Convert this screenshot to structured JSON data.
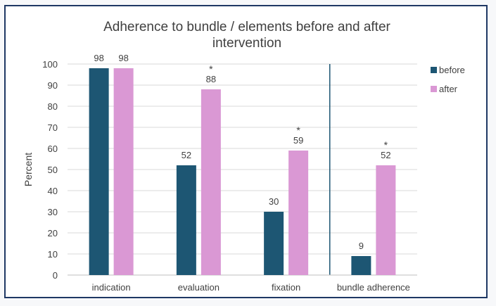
{
  "chart_data": {
    "type": "bar",
    "title_lines": [
      "Adherence to bundle / elements before and after",
      "intervention"
    ],
    "ylabel": "Percent",
    "xlabel": "",
    "categories": [
      "indication",
      "evaluation",
      "fixation",
      "bundle adherence"
    ],
    "series": [
      {
        "name": "before",
        "values": [
          98,
          52,
          30,
          9
        ],
        "color": "#1d5673"
      },
      {
        "name": "after",
        "values": [
          98,
          88,
          59,
          52
        ],
        "color": "#da98d4"
      }
    ],
    "significance_markers": [
      "",
      "*",
      "*",
      "*"
    ],
    "ylim": [
      0,
      100
    ],
    "yticks": [
      0,
      10,
      20,
      30,
      40,
      50,
      60,
      70,
      80,
      90,
      100
    ],
    "grid": true,
    "legend_position": "right",
    "separator_before_category": "bundle adherence"
  }
}
